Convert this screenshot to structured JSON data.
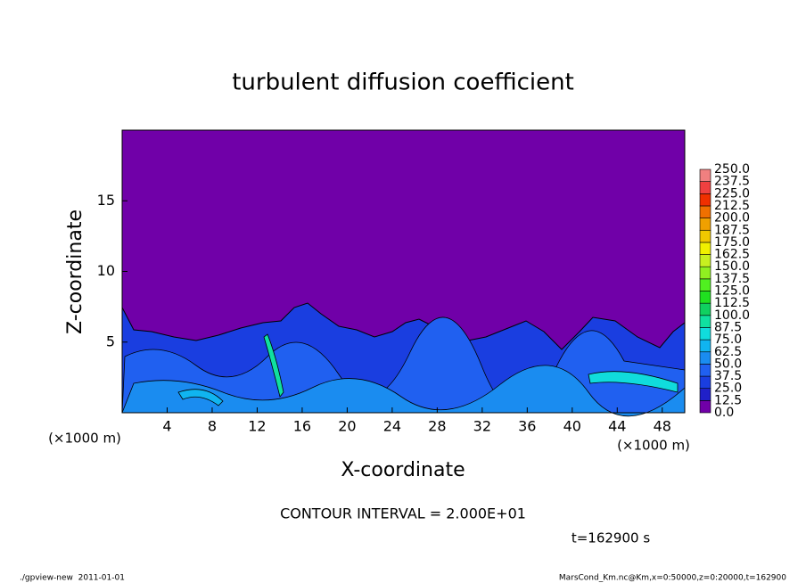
{
  "chart_data": {
    "type": "contour",
    "title": "turbulent diffusion coefficient",
    "x_label": "X-coordinate",
    "y_label": "Z-coordinate",
    "x_unit": "(×1000 m)",
    "y_unit": "(×1000 m)",
    "xlim": [
      0,
      50
    ],
    "xticks": [
      4,
      8,
      12,
      16,
      20,
      24,
      28,
      32,
      36,
      40,
      44,
      48
    ],
    "ylim": [
      0,
      20
    ],
    "yticks": [
      5,
      10,
      15
    ],
    "levels": [
      {
        "value": 0,
        "label": "0.0"
      },
      {
        "value": 12.5,
        "label": "12.5"
      },
      {
        "value": 25,
        "label": "25.0"
      },
      {
        "value": 37.5,
        "label": "37.5"
      },
      {
        "value": 50,
        "label": "50.0"
      },
      {
        "value": 62.5,
        "label": "62.5"
      },
      {
        "value": 75,
        "label": "75.0"
      },
      {
        "value": 87.5,
        "label": "87.5"
      },
      {
        "value": 100,
        "label": "100.0"
      },
      {
        "value": 112.5,
        "label": "112.5"
      },
      {
        "value": 125,
        "label": "125.0"
      },
      {
        "value": 137.5,
        "label": "137.5"
      },
      {
        "value": 150,
        "label": "150.0"
      },
      {
        "value": 162.5,
        "label": "162.5"
      },
      {
        "value": 175,
        "label": "175.0"
      },
      {
        "value": 187.5,
        "label": "187.5"
      },
      {
        "value": 200,
        "label": "200.0"
      },
      {
        "value": 212.5,
        "label": "212.5"
      },
      {
        "value": 225,
        "label": "225.0"
      },
      {
        "value": 237.5,
        "label": "237.5"
      },
      {
        "value": 250,
        "label": "250.0"
      }
    ],
    "colors": [
      "#7000a8",
      "#2020c8",
      "#1a3ee0",
      "#2060f0",
      "#1a8cf0",
      "#10b4f0",
      "#10dcdc",
      "#10e0a0",
      "#10d060",
      "#20e020",
      "#50f020",
      "#90f020",
      "#c8f020",
      "#f0f000",
      "#f0c800",
      "#f0a000",
      "#f07000",
      "#f03000",
      "#f04040",
      "#f08080"
    ],
    "annotation": "CONTOUR INTERVAL = 2.000E+01",
    "time_label": "t=162900 s",
    "footer_left": "./gpview-new  2011-01-01",
    "footer_right": "MarsCond_Km.nc@Km,x=0:50000,z=0:20000,t=162900"
  }
}
